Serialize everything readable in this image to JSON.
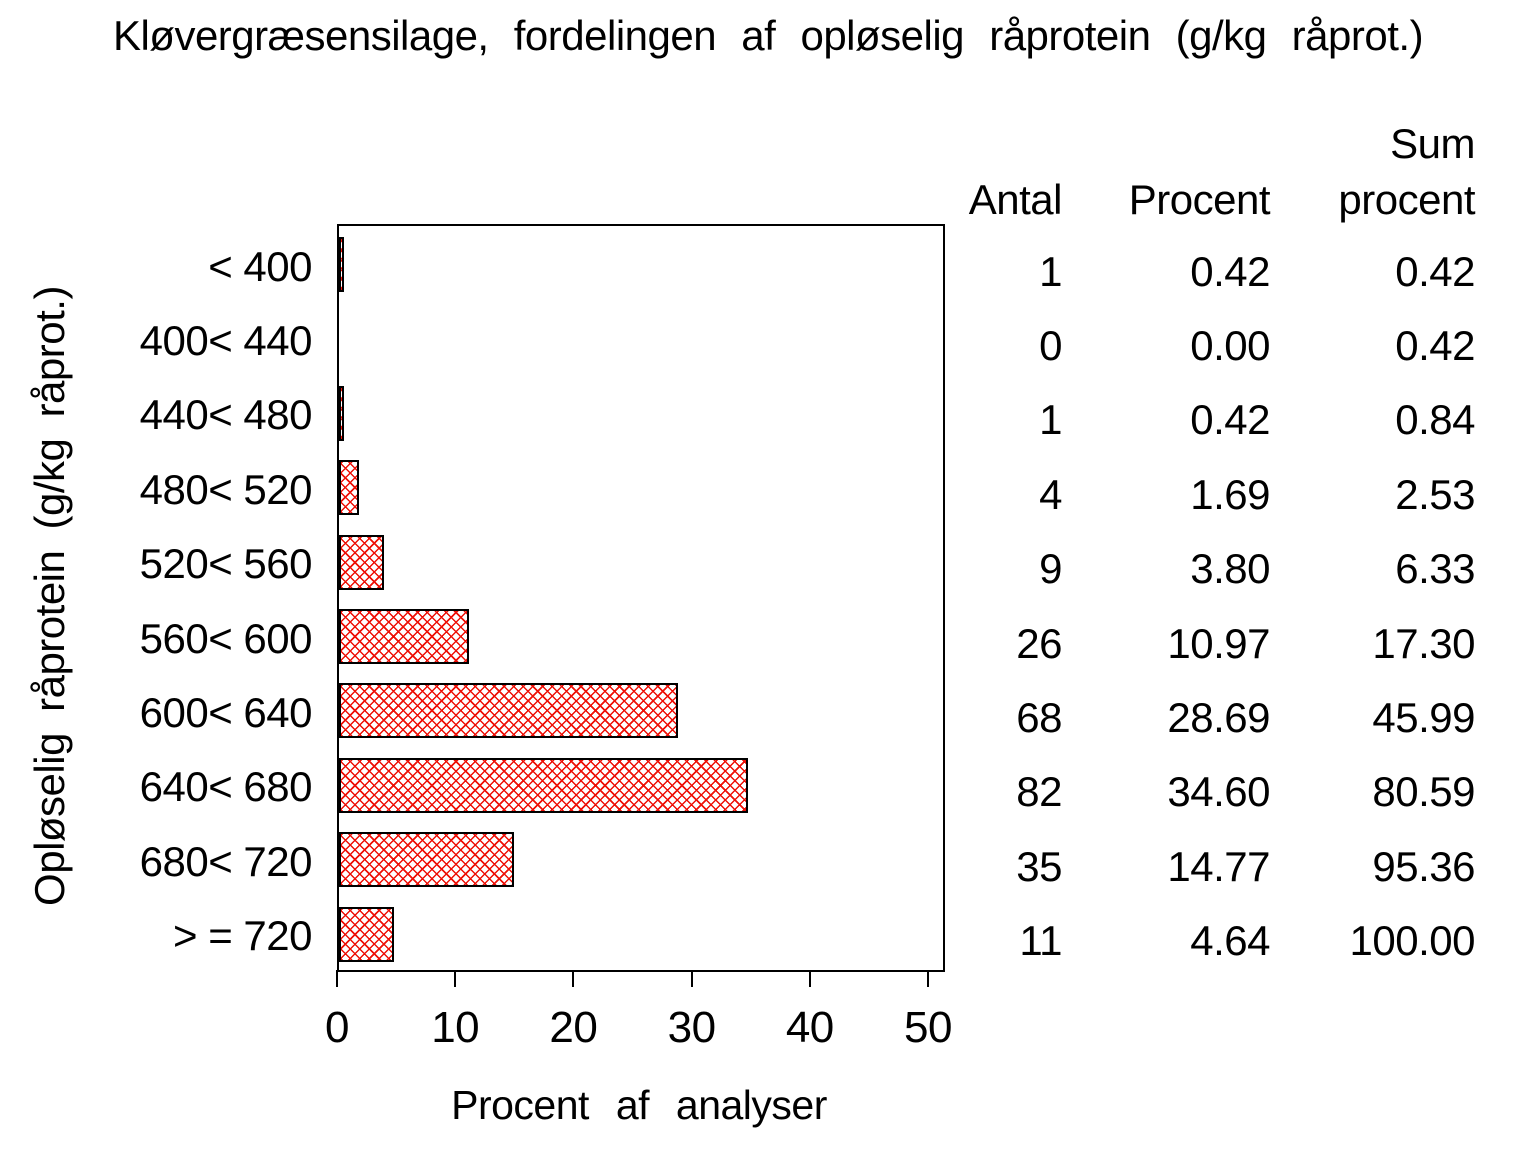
{
  "title": "Kløvergræsensilage, fordelingen af opløselig råprotein (g/kg råprot.)",
  "chart_data": {
    "type": "bar",
    "orientation": "horizontal",
    "title": "Kløvergræsensilage, fordelingen af opløselig råprotein (g/kg råprot.)",
    "xlabel": "Procent af analyser",
    "ylabel": "Opløselig råprotein (g/kg råprot.)",
    "categories": [
      "< 400",
      "400< 440",
      "440< 480",
      "480< 520",
      "520< 560",
      "560< 600",
      "600< 640",
      "640< 680",
      "680< 720",
      "> = 720"
    ],
    "series": [
      {
        "name": "Antal",
        "values": [
          1,
          0,
          1,
          4,
          9,
          26,
          68,
          82,
          35,
          11
        ]
      },
      {
        "name": "Procent",
        "values": [
          0.42,
          0.0,
          0.42,
          1.69,
          3.8,
          10.97,
          28.69,
          34.6,
          14.77,
          4.64
        ]
      },
      {
        "name": "Sum procent",
        "values": [
          0.42,
          0.42,
          0.84,
          2.53,
          6.33,
          17.3,
          45.99,
          80.59,
          95.36,
          100.0
        ]
      }
    ],
    "bar_value_series": "Procent",
    "xlim": [
      0,
      51
    ],
    "xticks": [
      0,
      10,
      20,
      30,
      40,
      50
    ],
    "grid": false,
    "legend": "none",
    "bar_hatch_color": "#ee1007",
    "bar_border_color": "#000000",
    "background_color": "#ffffff",
    "text_color": "#000000"
  },
  "table": {
    "header_lines": [
      [
        "Antal"
      ],
      [
        "Procent"
      ],
      [
        "Sum",
        "procent"
      ]
    ],
    "rows": [
      [
        "1",
        "0.42",
        "0.42"
      ],
      [
        "0",
        "0.00",
        "0.42"
      ],
      [
        "1",
        "0.42",
        "0.84"
      ],
      [
        "4",
        "1.69",
        "2.53"
      ],
      [
        "9",
        "3.80",
        "6.33"
      ],
      [
        "26",
        "10.97",
        "17.30"
      ],
      [
        "68",
        "28.69",
        "45.99"
      ],
      [
        "82",
        "34.60",
        "80.59"
      ],
      [
        "35",
        "14.77",
        "95.36"
      ],
      [
        "11",
        "4.64",
        "100.00"
      ]
    ]
  }
}
